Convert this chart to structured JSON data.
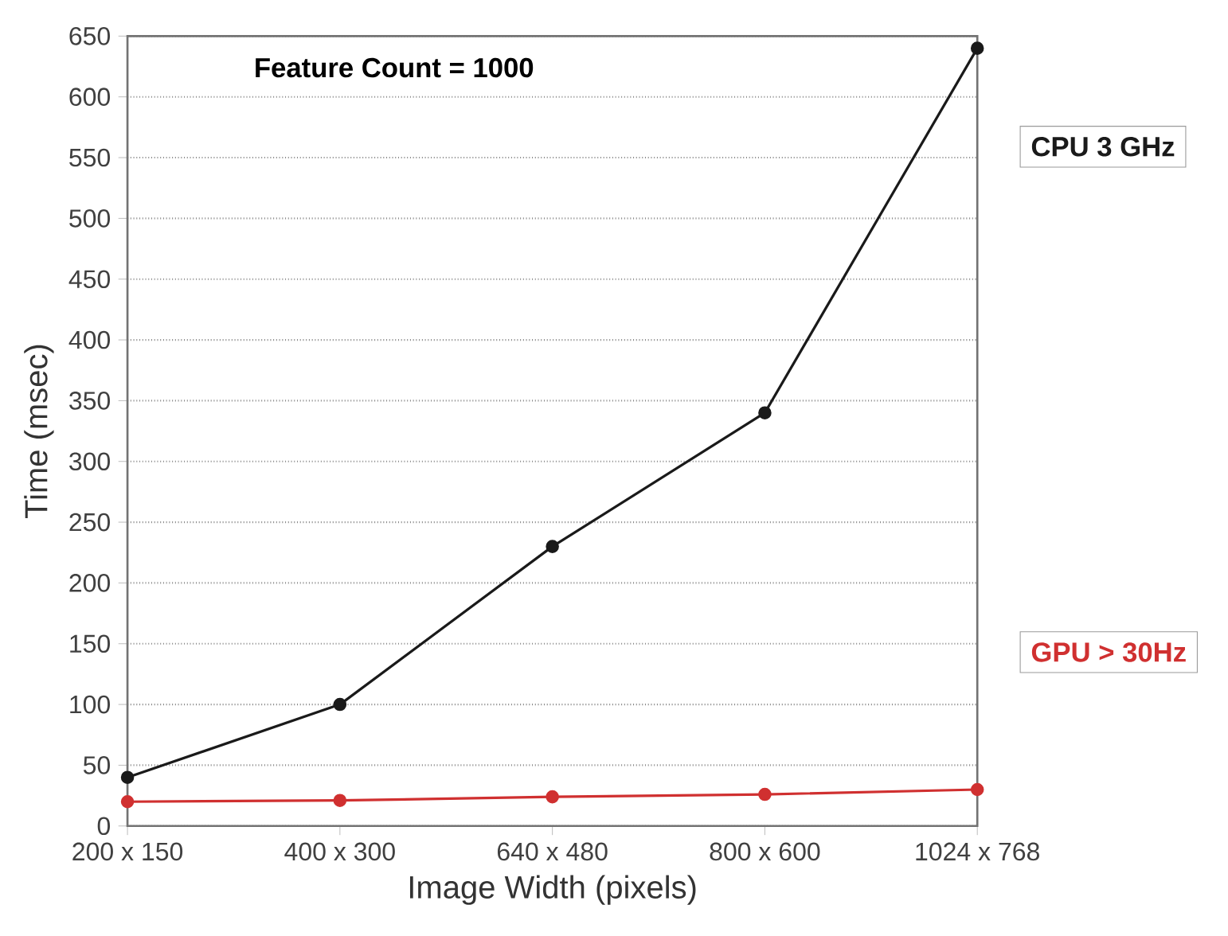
{
  "chart_data": {
    "type": "line",
    "xlabel": "Image Width (pixels)",
    "ylabel": "Time (msec)",
    "annotations": [
      "Feature Count = 1000"
    ],
    "categories": [
      "200 x 150",
      "400 x 300",
      "640 x 480",
      "800 x 600",
      "1024 x 768"
    ],
    "series": [
      {
        "name": "CPU 3 GHz",
        "color": "#1a1a1a",
        "values": [
          40,
          100,
          230,
          340,
          640
        ]
      },
      {
        "name": "GPU > 30Hz",
        "color": "#d03030",
        "values": [
          20,
          21,
          24,
          26,
          30
        ]
      }
    ],
    "ylim": [
      0,
      650
    ],
    "yticks": [
      0,
      50,
      100,
      150,
      200,
      250,
      300,
      350,
      400,
      450,
      500,
      550,
      600,
      650
    ],
    "grid": "y",
    "marker": "circle",
    "line_style": "solid"
  }
}
